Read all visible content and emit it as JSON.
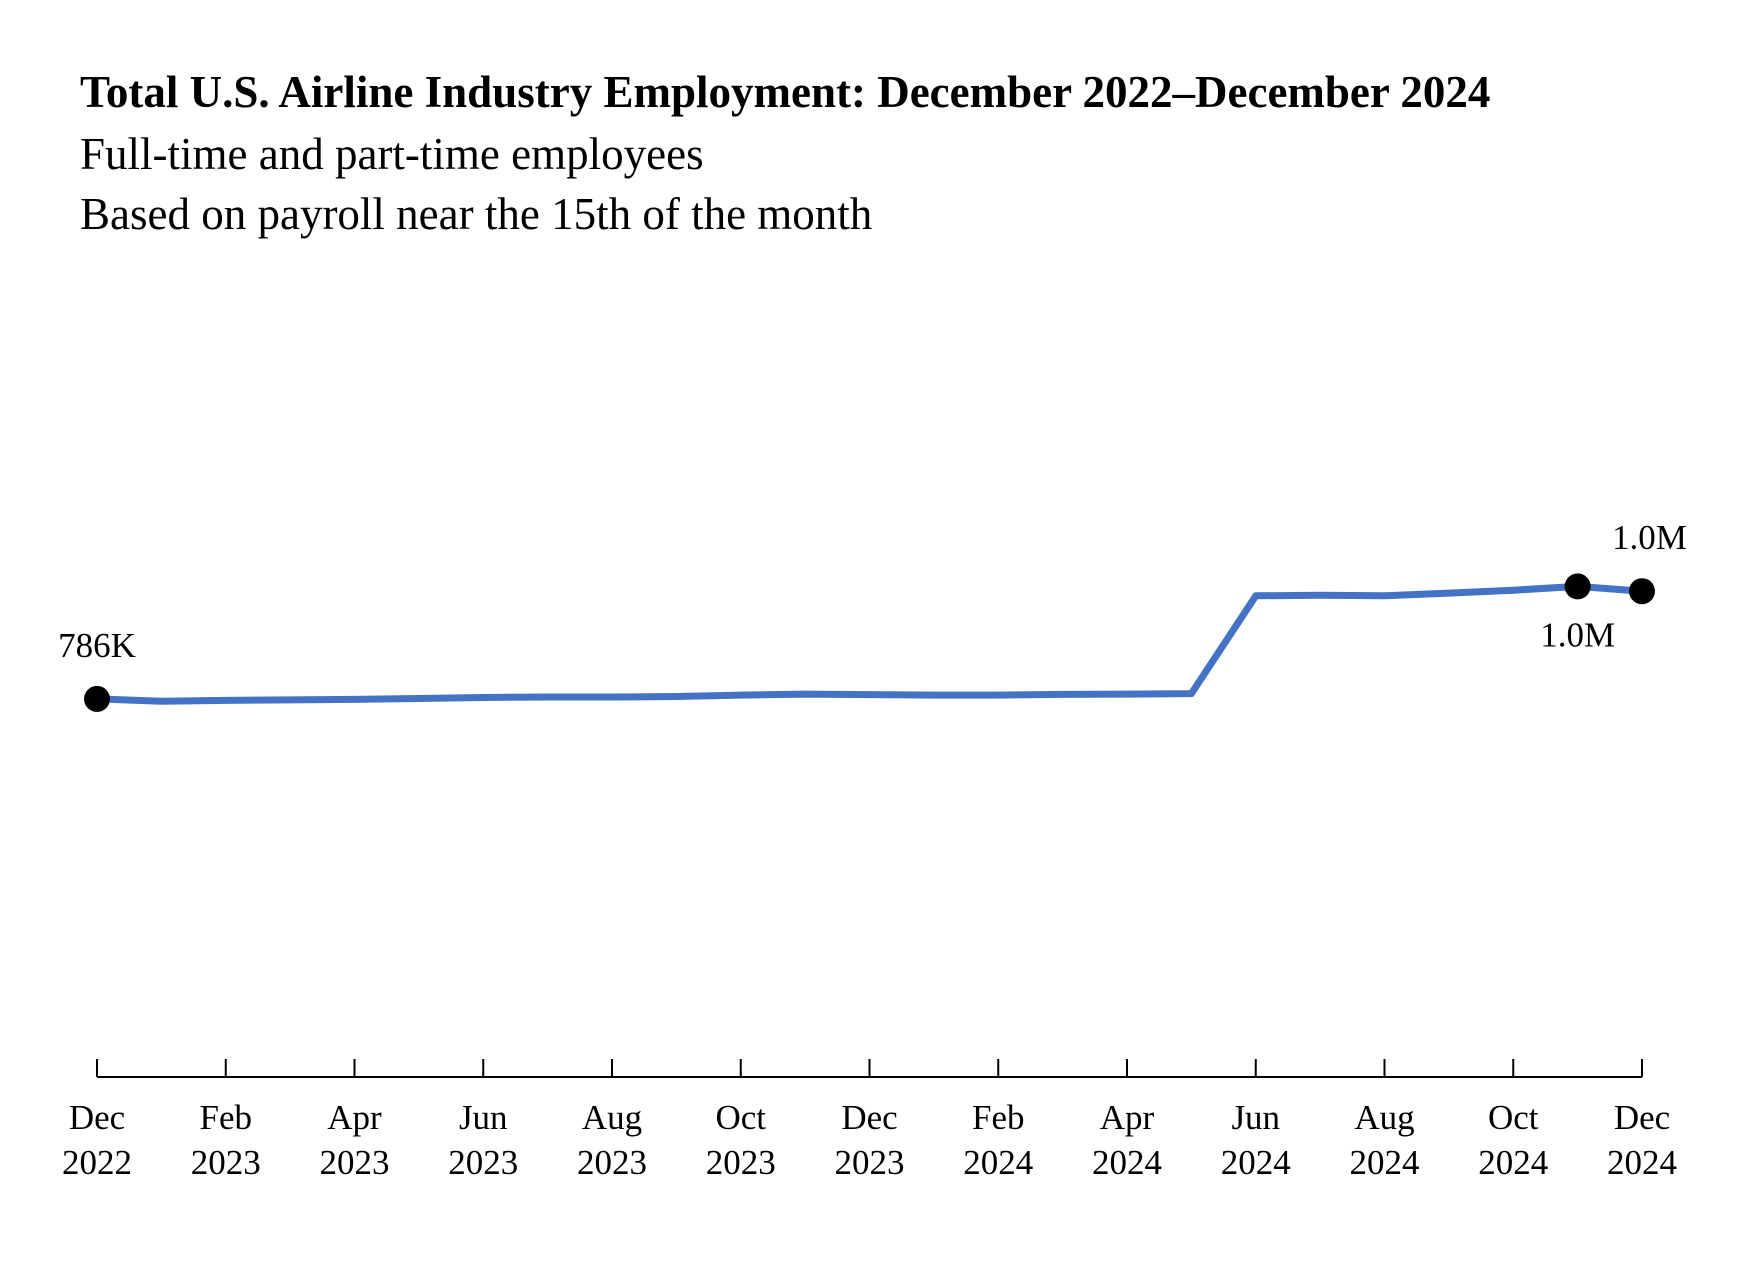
{
  "chart_data": {
    "type": "line",
    "title": "Total U.S. Airline Industry Employment: December 2022–December 2024",
    "subtitle_lines": [
      "Full-time and part-time employees",
      "Based on payroll near the 15th of the month"
    ],
    "xlabel": "",
    "ylabel": "",
    "grid": false,
    "legend": "none",
    "line_color": "#4472C4",
    "marker_color": "#000000",
    "x": [
      "2022-12",
      "2023-01",
      "2023-02",
      "2023-03",
      "2023-04",
      "2023-05",
      "2023-06",
      "2023-07",
      "2023-08",
      "2023-09",
      "2023-10",
      "2023-11",
      "2023-12",
      "2024-01",
      "2024-02",
      "2024-03",
      "2024-04",
      "2024-05",
      "2024-06",
      "2024-07",
      "2024-08",
      "2024-09",
      "2024-10",
      "2024-11",
      "2024-12"
    ],
    "x_ticks": [
      {
        "month": "Dec",
        "year": "2022",
        "x": "2022-12"
      },
      {
        "month": "Feb",
        "year": "2023",
        "x": "2023-02"
      },
      {
        "month": "Apr",
        "year": "2023",
        "x": "2023-04"
      },
      {
        "month": "Jun",
        "year": "2023",
        "x": "2023-06"
      },
      {
        "month": "Aug",
        "year": "2023",
        "x": "2023-08"
      },
      {
        "month": "Oct",
        "year": "2023",
        "x": "2023-10"
      },
      {
        "month": "Dec",
        "year": "2023",
        "x": "2023-12"
      },
      {
        "month": "Feb",
        "year": "2024",
        "x": "2024-02"
      },
      {
        "month": "Apr",
        "year": "2024",
        "x": "2024-04"
      },
      {
        "month": "Jun",
        "year": "2024",
        "x": "2024-06"
      },
      {
        "month": "Aug",
        "year": "2024",
        "x": "2024-08"
      },
      {
        "month": "Oct",
        "year": "2024",
        "x": "2024-10"
      },
      {
        "month": "Dec",
        "year": "2024",
        "x": "2024-12"
      }
    ],
    "series": [
      {
        "values": [
          786000,
          781000,
          783000,
          784000,
          785000,
          787000,
          789000,
          790000,
          790000,
          791000,
          794000,
          796000,
          795000,
          794000,
          794000,
          795500,
          796000,
          797000,
          1000500,
          1001500,
          1000500,
          1006000,
          1012000,
          1020000,
          1010000
        ]
      }
    ],
    "ylim": [
      0,
      1150000
    ],
    "markers": [
      {
        "x": "2022-12",
        "label": "786K",
        "label_position": "above"
      },
      {
        "x": "2024-11",
        "label": "1.0M",
        "label_position": "below"
      },
      {
        "x": "2024-12",
        "label": "1.0M",
        "label_position": "above"
      }
    ]
  }
}
